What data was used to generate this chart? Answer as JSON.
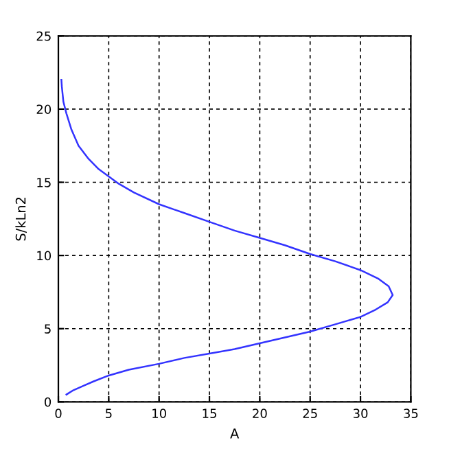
{
  "chart_data": {
    "type": "line",
    "xlabel": "A",
    "ylabel": "S/kLn2",
    "series": [
      {
        "color": "#3333ff",
        "x": [
          0.8,
          1.5,
          2.5,
          3.5,
          5,
          7,
          10,
          12.5,
          15,
          17.5,
          20,
          22.5,
          25,
          27.5,
          30,
          31.5,
          32.7,
          33.2,
          32.8,
          31.8,
          30,
          27.5,
          25,
          22.5,
          20,
          17.5,
          15,
          12.5,
          10,
          7.5,
          6,
          5,
          4,
          3,
          2,
          1.3,
          0.8,
          0.5,
          0.35,
          0.3
        ],
        "values": [
          0.5,
          0.8,
          1.1,
          1.4,
          1.8,
          2.2,
          2.6,
          3.0,
          3.3,
          3.6,
          4.0,
          4.4,
          4.8,
          5.3,
          5.8,
          6.3,
          6.8,
          7.3,
          7.9,
          8.4,
          9.0,
          9.6,
          10.1,
          10.7,
          11.2,
          11.7,
          12.3,
          12.9,
          13.5,
          14.3,
          14.9,
          15.4,
          15.9,
          16.6,
          17.5,
          18.6,
          19.7,
          20.5,
          21.5,
          22
        ]
      }
    ],
    "xlim": [
      0,
      35
    ],
    "xticks": [
      0,
      5,
      10,
      15,
      20,
      25,
      30,
      35
    ],
    "ylim": [
      0,
      25
    ],
    "yticks": [
      0,
      5,
      10,
      15,
      20,
      25
    ],
    "grid": true,
    "line_style": "solid"
  }
}
